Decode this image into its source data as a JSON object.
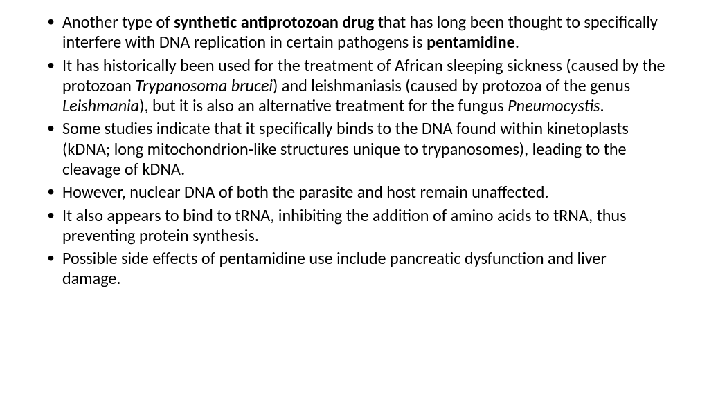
{
  "slide": {
    "background_color": "#ffffff",
    "text_color": "#000000",
    "font_family": "Calibri",
    "font_size_pt": 18,
    "line_height": 1.21,
    "bullet_char": "•",
    "bullets": [
      {
        "runs": [
          {
            "t": "Another type of "
          },
          {
            "t": "synthetic antiprotozoan drug",
            "bold": true
          },
          {
            "t": " that has long been thought to specifically interfere with DNA replication in certain pathogens is "
          },
          {
            "t": "pentamidine",
            "bold": true
          },
          {
            "t": "."
          }
        ]
      },
      {
        "runs": [
          {
            "t": "It has historically been used for the treatment of African sleeping sickness (caused by the protozoan "
          },
          {
            "t": "Trypanosoma brucei",
            "italic": true
          },
          {
            "t": ") and leishmaniasis (caused by protozoa of the genus "
          },
          {
            "t": "Leishmania",
            "italic": true
          },
          {
            "t": "), but it is also an alternative treatment for the fungus "
          },
          {
            "t": "Pneumocystis",
            "italic": true
          },
          {
            "t": "."
          }
        ]
      },
      {
        "runs": [
          {
            "t": "Some studies indicate that it specifically binds to the DNA found within kinetoplasts (kDNA; long mitochondrion-like structures unique to trypanosomes), leading to the cleavage of kDNA."
          }
        ]
      },
      {
        "runs": [
          {
            "t": "However, nuclear DNA of both the parasite and host remain unaffected."
          }
        ]
      },
      {
        "runs": [
          {
            "t": "It also appears to bind to tRNA, inhibiting the addition of amino acids to tRNA, thus preventing protein synthesis."
          }
        ]
      },
      {
        "runs": [
          {
            "t": "Possible side effects of pentamidine use include pancreatic dysfunction and liver damage."
          }
        ]
      }
    ]
  }
}
